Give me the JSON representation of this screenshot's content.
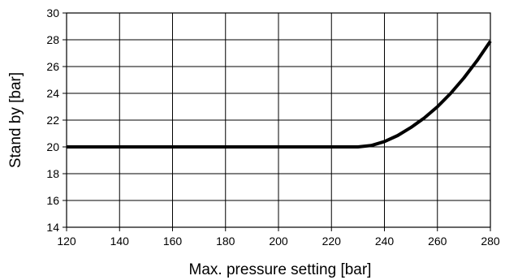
{
  "chart_data": {
    "type": "line",
    "title": "",
    "xlabel": "Max. pressure setting [bar]",
    "ylabel": "Stand by [bar]",
    "xlim": [
      120,
      280
    ],
    "ylim": [
      14,
      30
    ],
    "x_ticks": [
      120,
      140,
      160,
      180,
      200,
      220,
      240,
      260,
      280
    ],
    "y_ticks": [
      14,
      16,
      18,
      20,
      22,
      24,
      26,
      28,
      30
    ],
    "grid": true,
    "legend": "none",
    "series": [
      {
        "color": "#000000",
        "x": [
          120,
          140,
          160,
          180,
          200,
          220,
          230,
          235,
          240,
          245,
          250,
          255,
          260,
          265,
          270,
          275,
          280
        ],
        "y": [
          20,
          20,
          20,
          20,
          20,
          20,
          20,
          20.1,
          20.4,
          20.85,
          21.45,
          22.15,
          23.0,
          24.0,
          25.15,
          26.45,
          27.9
        ]
      }
    ]
  }
}
